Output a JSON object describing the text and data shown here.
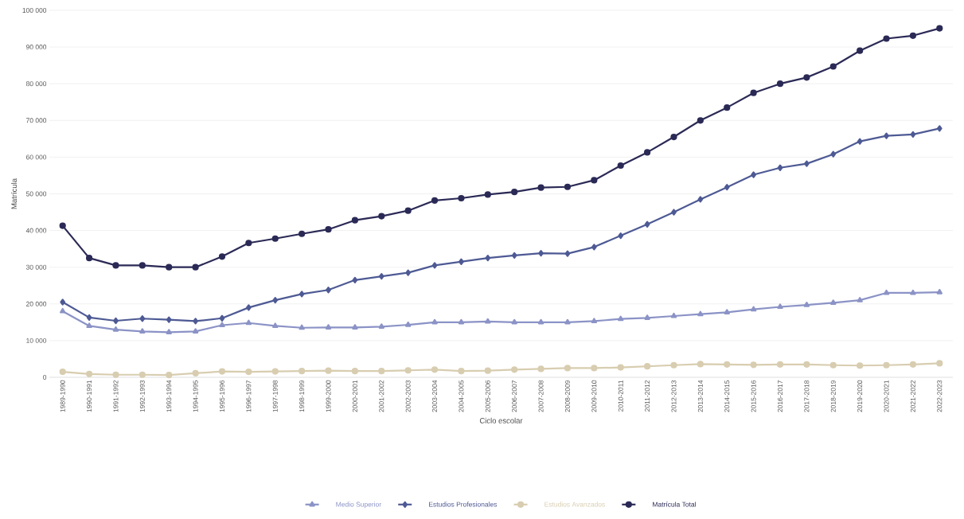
{
  "chart_data": {
    "type": "line",
    "xlabel": "Ciclo escolar",
    "ylabel": "Matrícula",
    "categories": [
      "1989-1990",
      "1990-1991",
      "1991-1992",
      "1992-1993",
      "1993-1994",
      "1994-1995",
      "1995-1996",
      "1996-1997",
      "1997-1998",
      "1998-1999",
      "1999-2000",
      "2000-2001",
      "2001-2002",
      "2002-2003",
      "2003-2004",
      "2004-2005",
      "2005-2006",
      "2006-2007",
      "2007-2008",
      "2008-2009",
      "2009-2010",
      "2010-2011",
      "2011-2012",
      "2012-2013",
      "2013-2014",
      "2014-2015",
      "2015-2016",
      "2016-2017",
      "2017-2018",
      "2018-2019",
      "2019-2020",
      "2020-2021",
      "2021-2022",
      "2022-2023"
    ],
    "series": [
      {
        "name": "Medio Superior",
        "color": "#8b93c6",
        "marker": "triangle",
        "values": [
          18000,
          14000,
          13000,
          12500,
          12300,
          12500,
          14200,
          14800,
          14000,
          13500,
          13600,
          13600,
          13800,
          14300,
          15000,
          15000,
          15200,
          15000,
          15000,
          15000,
          15300,
          15900,
          16200,
          16700,
          17200,
          17700,
          18500,
          19200,
          19700,
          20300,
          21000,
          23000,
          23000,
          23200
        ]
      },
      {
        "name": "Estudios Profesionales",
        "color": "#4e5a94",
        "marker": "diamond",
        "values": [
          20500,
          16300,
          15400,
          16000,
          15700,
          15300,
          16100,
          19000,
          21000,
          22700,
          23800,
          26500,
          27500,
          28500,
          30500,
          31500,
          32500,
          33200,
          33800,
          33700,
          35500,
          38600,
          41700,
          45000,
          48500,
          51800,
          55200,
          57100,
          58200,
          60800,
          64300,
          65800,
          66200,
          67800
        ]
      },
      {
        "name": "Estudios Avanzados",
        "color": "#d8cdb0",
        "marker": "circle",
        "values": [
          1500,
          900,
          700,
          700,
          600,
          1100,
          1600,
          1500,
          1600,
          1700,
          1800,
          1700,
          1700,
          1900,
          2100,
          1700,
          1800,
          2100,
          2300,
          2500,
          2500,
          2700,
          3000,
          3300,
          3600,
          3500,
          3400,
          3500,
          3500,
          3300,
          3200,
          3300,
          3500,
          3800
        ]
      },
      {
        "name": "Matrícula Total",
        "color": "#2b2a56",
        "marker": "circle",
        "values": [
          41300,
          32500,
          30500,
          30500,
          30000,
          30000,
          32900,
          36600,
          37800,
          39100,
          40300,
          42800,
          43900,
          45400,
          48200,
          48800,
          49800,
          50500,
          51700,
          51900,
          53700,
          57700,
          61300,
          65500,
          70000,
          73500,
          77500,
          80000,
          81700,
          84700,
          89000,
          92300,
          93100,
          95100
        ]
      }
    ],
    "ylim": [
      0,
      100000
    ],
    "yticks": [
      0,
      {
        "value": 10000,
        "label": "10 000"
      },
      {
        "value": 20000,
        "label": "20 000"
      },
      {
        "value": 30000,
        "label": "30 000"
      },
      {
        "value": 40000,
        "label": "40 000"
      },
      {
        "value": 50000,
        "label": "50 000"
      },
      {
        "value": 60000,
        "label": "60 000"
      },
      {
        "value": 70000,
        "label": "70 000"
      },
      {
        "value": 80000,
        "label": "80 000"
      },
      {
        "value": 90000,
        "label": "90 000"
      },
      {
        "value": 100000,
        "label": "100 000"
      }
    ],
    "grid": "y",
    "legend": "bottom",
    "line_style": "solid"
  }
}
